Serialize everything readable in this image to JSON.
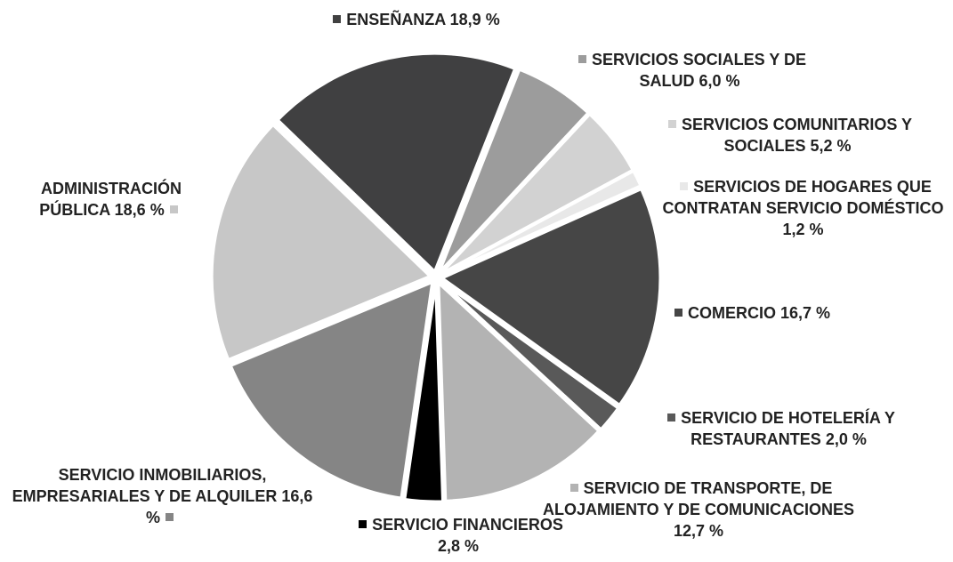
{
  "chart_data": {
    "type": "pie",
    "categories": [
      "ENSEÑANZA",
      "SERVICIOS SOCIALES Y DE SALUD",
      "SERVICIOS COMUNITARIOS Y SOCIALES",
      "SERVICIOS DE HOGARES QUE CONTRATAN SERVICIO DOMÉSTICO",
      "COMERCIO",
      "SERVICIO DE HOTELERÍA Y RESTAURANTES",
      "SERVICIO DE TRANSPORTE, DE ALOJAMIENTO Y DE COMUNICACIONES",
      "SERVICIO FINANCIEROS",
      "SERVICIO INMOBILIARIOS, EMPRESARIALES Y DE ALQUILER",
      "ADMINISTRACIÓN PÚBLICA"
    ],
    "values": [
      18.9,
      6.0,
      5.2,
      1.2,
      16.7,
      2.0,
      12.7,
      2.8,
      16.6,
      18.6
    ],
    "value_labels": [
      "18,9 %",
      "6,0 %",
      "5,2 %",
      "1,2 %",
      "16,7 %",
      "2,0 %",
      "12,7 %",
      "2,8 %",
      "16,6 %",
      "18,6 %"
    ],
    "colors": [
      "#404041",
      "#9c9c9c",
      "#d2d2d2",
      "#e8e8e8",
      "#464646",
      "#595959",
      "#b3b3b3",
      "#000000",
      "#858585",
      "#c7c7c7"
    ]
  }
}
